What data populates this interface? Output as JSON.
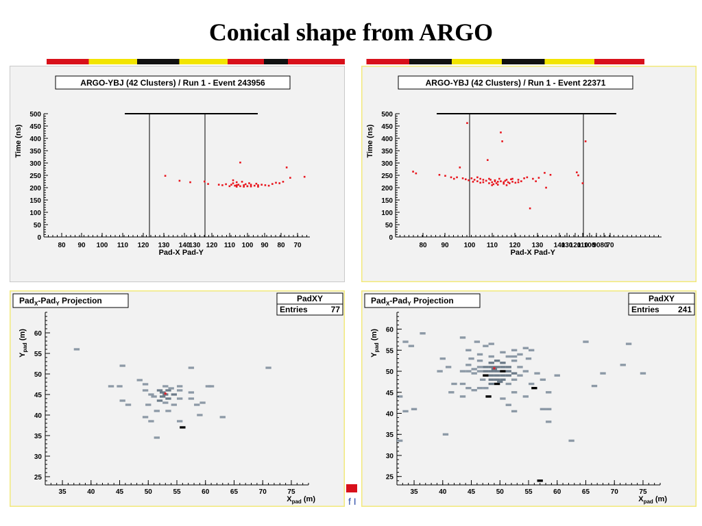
{
  "slide": {
    "title": "Conical shape from ARGO",
    "footer_text": "f I"
  },
  "colors": {
    "panel_bg": "#f2f2f2",
    "frame_yellow": "#f2e97a",
    "marker_red": "#e8141c",
    "hist_dark": "#6c7b89",
    "hist_light": "#8c99a6",
    "hist_black": "#000000",
    "stripe_red": "#d8101a",
    "stripe_yellow": "#f2e400"
  },
  "chart_data": [
    {
      "type": "scatter",
      "id": "time-profile-left",
      "title": "ARGO-YBJ  (42 Clusters)  /  Run 1  -  Event 243956",
      "ylabel": "Time (ns)",
      "xlabel": "Pad-X Pad-Y",
      "ylim": [
        0,
        500
      ],
      "yticks": [
        0,
        50,
        100,
        150,
        200,
        250,
        300,
        350,
        400,
        450,
        500
      ],
      "xtick_labels": [
        "80",
        "90",
        "100",
        "110",
        "120",
        "130",
        "140",
        "130",
        "120",
        "110",
        "100",
        "90",
        "80",
        "70"
      ],
      "grid": false,
      "points": [
        [
          106,
          248
        ],
        [
          110,
          228
        ],
        [
          113,
          222
        ],
        [
          117,
          225
        ],
        [
          118,
          215
        ],
        [
          121,
          212
        ],
        [
          122,
          210
        ],
        [
          123,
          214
        ],
        [
          124,
          206
        ],
        [
          124.5,
          212
        ],
        [
          125,
          218
        ],
        [
          125.5,
          208
        ],
        [
          126,
          204
        ],
        [
          126.5,
          212
        ],
        [
          127,
          302
        ],
        [
          127.5,
          224
        ],
        [
          128,
          204
        ],
        [
          128.5,
          214
        ],
        [
          129,
          206
        ],
        [
          129.5,
          218
        ],
        [
          130,
          212
        ],
        [
          131,
          208
        ],
        [
          131.5,
          216
        ],
        [
          132,
          204
        ],
        [
          133,
          212
        ],
        [
          134,
          210
        ],
        [
          135,
          208
        ],
        [
          136,
          215
        ],
        [
          137,
          220
        ],
        [
          138,
          218
        ],
        [
          139,
          224
        ],
        [
          140,
          282
        ],
        [
          141,
          240
        ],
        [
          145,
          244
        ],
        [
          125,
          230
        ],
        [
          126,
          210
        ],
        [
          127,
          206
        ],
        [
          128,
          210
        ],
        [
          129,
          206
        ],
        [
          130,
          205
        ],
        [
          132,
          210
        ],
        [
          126,
          222
        ]
      ]
    },
    {
      "type": "scatter",
      "id": "time-profile-right",
      "title": "ARGO-YBJ  (42 Clusters)  /  Run 1  -  Event 22371",
      "ylabel": "Time (ns)",
      "xlabel": "Pad-X Pad-Y",
      "ylim": [
        0,
        500
      ],
      "yticks": [
        0,
        50,
        100,
        150,
        200,
        250,
        300,
        350,
        400,
        450,
        500
      ],
      "xtick_labels": [
        "80",
        "90",
        "100",
        "110",
        "120",
        "130",
        "140",
        "130",
        "120",
        "110",
        "100",
        "90",
        "80",
        "70"
      ],
      "grid": false,
      "points": [
        [
          80,
          265
        ],
        [
          81,
          258
        ],
        [
          89,
          252
        ],
        [
          91,
          248
        ],
        [
          93,
          242
        ],
        [
          94,
          236
        ],
        [
          95,
          242
        ],
        [
          96,
          282
        ],
        [
          97,
          238
        ],
        [
          98,
          234
        ],
        [
          98.5,
          462
        ],
        [
          99,
          230
        ],
        [
          100,
          238
        ],
        [
          100.5,
          224
        ],
        [
          101,
          232
        ],
        [
          102,
          226
        ],
        [
          103,
          236
        ],
        [
          104,
          222
        ],
        [
          105,
          228
        ],
        [
          105.5,
          312
        ],
        [
          106,
          218
        ],
        [
          106.5,
          232
        ],
        [
          107,
          222
        ],
        [
          107.5,
          214
        ],
        [
          108,
          226
        ],
        [
          108.5,
          218
        ],
        [
          109,
          212
        ],
        [
          109.5,
          236
        ],
        [
          110,
          424
        ],
        [
          110.5,
          388
        ],
        [
          111,
          216
        ],
        [
          111.5,
          228
        ],
        [
          112,
          210
        ],
        [
          112.5,
          222
        ],
        [
          113,
          218
        ],
        [
          113.5,
          234
        ],
        [
          114,
          224
        ],
        [
          115,
          220
        ],
        [
          116,
          232
        ],
        [
          117,
          226
        ],
        [
          118,
          238
        ],
        [
          119,
          242
        ],
        [
          120,
          116
        ],
        [
          121,
          236
        ],
        [
          122,
          226
        ],
        [
          123,
          240
        ],
        [
          125,
          260
        ],
        [
          125.5,
          200
        ],
        [
          127,
          252
        ],
        [
          136,
          262
        ],
        [
          136.5,
          250
        ],
        [
          138,
          218
        ],
        [
          139,
          388
        ],
        [
          102,
          242
        ],
        [
          104,
          232
        ],
        [
          106,
          236
        ],
        [
          108,
          230
        ],
        [
          110,
          226
        ],
        [
          112,
          232
        ],
        [
          114,
          236
        ],
        [
          116,
          222
        ],
        [
          103,
          220
        ],
        [
          107,
          210
        ],
        [
          109,
          224
        ],
        [
          111,
          222
        ]
      ]
    },
    {
      "type": "heatmap",
      "id": "pad-projection-left",
      "title": "Pad",
      "title_sub_x": "X",
      "title_dash": "-Pad",
      "title_sub_y": "Y",
      "title_suffix": "  Projection",
      "stats_title": "PadXY",
      "stats_label": "Entries",
      "entries": "77",
      "xlabel": "X",
      "xlabel_sub": "pad",
      "xlabel_unit": " (m)",
      "ylabel": "Y",
      "ylabel_sub": "pad",
      "ylabel_unit": " (m)",
      "xlim": [
        32,
        78
      ],
      "ylim": [
        23,
        65
      ],
      "xticks": [
        35,
        40,
        45,
        50,
        55,
        60,
        65,
        70,
        75
      ],
      "yticks": [
        25,
        30,
        35,
        40,
        45,
        50,
        55,
        60
      ],
      "core_marker": [
        53,
        45
      ],
      "cells": [
        [
          37.5,
          56,
          1
        ],
        [
          45.5,
          52,
          1
        ],
        [
          43.5,
          47,
          1
        ],
        [
          45,
          47,
          1
        ],
        [
          45.5,
          43.5,
          1
        ],
        [
          46.5,
          42.5,
          1
        ],
        [
          48.5,
          48.5,
          1
        ],
        [
          49.5,
          47.5,
          1
        ],
        [
          49.5,
          46,
          1
        ],
        [
          50.5,
          45,
          1
        ],
        [
          51,
          44.5,
          1
        ],
        [
          50,
          42.5,
          1
        ],
        [
          51.5,
          41,
          1
        ],
        [
          49.5,
          39.5,
          1
        ],
        [
          50.5,
          38.5,
          1
        ],
        [
          51.5,
          34.5,
          1
        ],
        [
          52.5,
          45.5,
          2
        ],
        [
          53.5,
          46,
          2
        ],
        [
          52.5,
          44.5,
          2
        ],
        [
          53.5,
          44,
          2
        ],
        [
          54.5,
          45,
          2
        ],
        [
          52,
          43.5,
          2
        ],
        [
          53,
          43,
          1
        ],
        [
          55.5,
          47,
          1
        ],
        [
          55.5,
          46,
          1
        ],
        [
          55.5,
          44,
          1
        ],
        [
          54.5,
          42.5,
          1
        ],
        [
          53.5,
          41,
          1
        ],
        [
          55.5,
          38.5,
          1
        ],
        [
          56,
          37,
          3
        ],
        [
          57.5,
          45.5,
          1
        ],
        [
          57.5,
          44,
          1
        ],
        [
          58.5,
          42.5,
          1
        ],
        [
          59.5,
          43,
          1
        ],
        [
          59,
          40,
          1
        ],
        [
          57.5,
          51.5,
          1
        ],
        [
          60.5,
          47,
          1
        ],
        [
          61,
          47,
          1
        ],
        [
          63,
          39.5,
          1
        ],
        [
          71,
          51.5,
          1
        ],
        [
          53,
          45,
          2
        ],
        [
          52,
          46,
          2
        ],
        [
          54,
          46.5,
          1
        ],
        [
          53,
          47,
          1
        ]
      ]
    },
    {
      "type": "heatmap",
      "id": "pad-projection-right",
      "title": "Pad",
      "title_sub_x": "X",
      "title_dash": "-Pad",
      "title_sub_y": "Y",
      "title_suffix": "  Projection",
      "stats_title": "PadXY",
      "stats_label": "Entries",
      "entries": "241",
      "xlabel": "X",
      "xlabel_sub": "pad",
      "xlabel_unit": " (m)",
      "ylabel": "Y",
      "ylabel_sub": "pad",
      "ylabel_unit": " (m)",
      "xlim": [
        32,
        78
      ],
      "ylim": [
        23,
        64
      ],
      "xticks": [
        35,
        40,
        45,
        50,
        55,
        60,
        65,
        70,
        75
      ],
      "yticks": [
        25,
        30,
        35,
        40,
        45,
        50,
        55,
        60
      ],
      "core_marker": [
        49,
        50.5
      ],
      "cells": [
        [
          33.5,
          57,
          1
        ],
        [
          34.5,
          56,
          1
        ],
        [
          32.5,
          44,
          1
        ],
        [
          33.5,
          40.5,
          1
        ],
        [
          35,
          41,
          1
        ],
        [
          32.5,
          33.5,
          1
        ],
        [
          36.5,
          59,
          1
        ],
        [
          40,
          53,
          1
        ],
        [
          39.5,
          50,
          1
        ],
        [
          41,
          51,
          1
        ],
        [
          42,
          47,
          1
        ],
        [
          41.5,
          45,
          1
        ],
        [
          40.5,
          35,
          1
        ],
        [
          43.5,
          58,
          1
        ],
        [
          44.5,
          55,
          1
        ],
        [
          45,
          53,
          1
        ],
        [
          44.5,
          50,
          1
        ],
        [
          45.5,
          49.5,
          1
        ],
        [
          43.5,
          47,
          1
        ],
        [
          44.5,
          46,
          1
        ],
        [
          43.5,
          44,
          1
        ],
        [
          45.5,
          45.5,
          1
        ],
        [
          46.5,
          54,
          1
        ],
        [
          46,
          57,
          1
        ],
        [
          47.5,
          56,
          1
        ],
        [
          48.5,
          56.5,
          1
        ],
        [
          46.5,
          51,
          1
        ],
        [
          47,
          48,
          1
        ],
        [
          47.5,
          46,
          1
        ],
        [
          46.5,
          46,
          1
        ],
        [
          48,
          44,
          3
        ],
        [
          48.5,
          52,
          2
        ],
        [
          49.5,
          52.5,
          2
        ],
        [
          50.5,
          52,
          2
        ],
        [
          47.5,
          51,
          2
        ],
        [
          48.5,
          51,
          2
        ],
        [
          49.5,
          51,
          2
        ],
        [
          50.5,
          51,
          2
        ],
        [
          51.5,
          51,
          2
        ],
        [
          47.5,
          50,
          2
        ],
        [
          48.5,
          50,
          2
        ],
        [
          49.5,
          50,
          2
        ],
        [
          50.5,
          50,
          3
        ],
        [
          51.5,
          50,
          2
        ],
        [
          47.5,
          49,
          3
        ],
        [
          48.5,
          49,
          2
        ],
        [
          49.5,
          49,
          2
        ],
        [
          50.5,
          49,
          2
        ],
        [
          51.5,
          49,
          2
        ],
        [
          52.5,
          49.5,
          2
        ],
        [
          48.5,
          48,
          2
        ],
        [
          49.5,
          48,
          2
        ],
        [
          50.5,
          48,
          2
        ],
        [
          49.5,
          47,
          3
        ],
        [
          50,
          47.5,
          2
        ],
        [
          48.5,
          47,
          2
        ],
        [
          51.5,
          47,
          1
        ],
        [
          52.5,
          48,
          1
        ],
        [
          53.5,
          49,
          1
        ],
        [
          53.5,
          51,
          1
        ],
        [
          52.5,
          52.5,
          1
        ],
        [
          51.5,
          53.5,
          1
        ],
        [
          53.5,
          54,
          1
        ],
        [
          52.5,
          55,
          1
        ],
        [
          54.5,
          55.5,
          1
        ],
        [
          55.5,
          55,
          1
        ],
        [
          55,
          53,
          1
        ],
        [
          54.5,
          50,
          1
        ],
        [
          56.5,
          49.5,
          1
        ],
        [
          57.5,
          48,
          1
        ],
        [
          55.5,
          47,
          1
        ],
        [
          56,
          46,
          3
        ],
        [
          52.5,
          45,
          1
        ],
        [
          50.5,
          43.5,
          1
        ],
        [
          51.5,
          42,
          1
        ],
        [
          52.5,
          40.5,
          1
        ],
        [
          54.5,
          44,
          1
        ],
        [
          58.5,
          45,
          1
        ],
        [
          58.5,
          41,
          1
        ],
        [
          58.5,
          38,
          1
        ],
        [
          57.5,
          41,
          1
        ],
        [
          60,
          49,
          1
        ],
        [
          62.5,
          33.5,
          1
        ],
        [
          65,
          57,
          1
        ],
        [
          66.5,
          46.5,
          1
        ],
        [
          68,
          49.5,
          1
        ],
        [
          71.5,
          51.5,
          1
        ],
        [
          72.5,
          56.5,
          1
        ],
        [
          75,
          49.5,
          1
        ],
        [
          57,
          24,
          3
        ],
        [
          46.5,
          50,
          1
        ],
        [
          45.5,
          50.5,
          1
        ],
        [
          44.5,
          51.5,
          1
        ],
        [
          43.5,
          50,
          1
        ],
        [
          46.5,
          52.5,
          1
        ],
        [
          48.5,
          53.5,
          1
        ],
        [
          50.5,
          54.5,
          1
        ],
        [
          52.5,
          53.5,
          1
        ],
        [
          49,
          50.5,
          2
        ]
      ]
    }
  ]
}
